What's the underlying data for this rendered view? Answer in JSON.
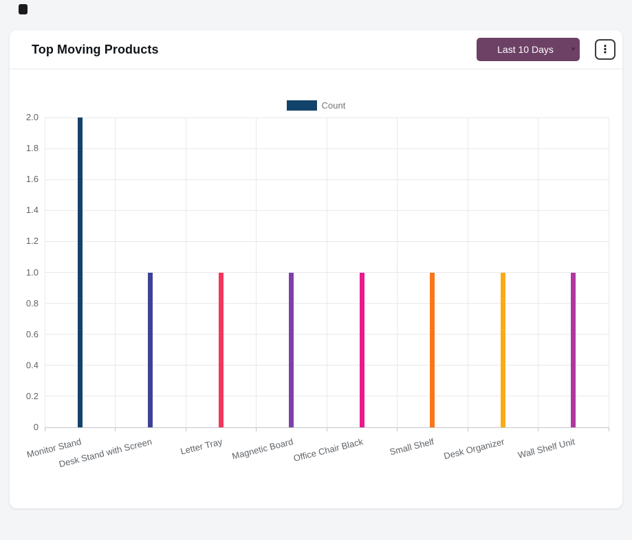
{
  "page": {
    "background": "#f4f5f7"
  },
  "icons": {
    "kebab": "⋮",
    "caret_down": "▾"
  },
  "card": {
    "title": "Top Moving Products",
    "range_button": {
      "label": "Last 10 Days",
      "background": "#6d4166",
      "text_color": "#ffffff"
    }
  },
  "chart_data": {
    "type": "bar",
    "title": "Top Moving Products",
    "categories": [
      "Monitor Stand",
      "Desk Stand with Screen",
      "Letter Tray",
      "Magnetic Board",
      "Office Chair Black",
      "Small Shelf",
      "Desk Organizer",
      "Wall Shelf Unit"
    ],
    "series": [
      {
        "name": "Count",
        "values": [
          2,
          1,
          1,
          1,
          1,
          1,
          1,
          1
        ]
      }
    ],
    "bar_colors": [
      "#12436b",
      "#3c4296",
      "#f5365c",
      "#7e3fa8",
      "#e81a8c",
      "#f9761a",
      "#fbab17",
      "#b136a1"
    ],
    "legend": {
      "label": "Count",
      "color": "#12436b",
      "position": "top"
    },
    "ylim": [
      0,
      2
    ],
    "y_tick_step": 0.2,
    "y_tick_labels": [
      "0",
      "0.2",
      "0.4",
      "0.6",
      "0.8",
      "1.0",
      "1.2",
      "1.4",
      "1.6",
      "1.8",
      "2.0"
    ],
    "grid": true,
    "xlabel": "",
    "ylabel": ""
  }
}
